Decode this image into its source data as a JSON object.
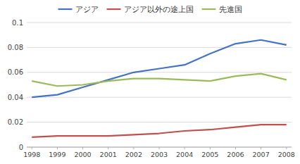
{
  "chart_data": {
    "type": "line",
    "x": [
      1998,
      1999,
      2000,
      2001,
      2002,
      2003,
      2004,
      2005,
      2006,
      2007,
      2008
    ],
    "series": [
      {
        "name": "アジア",
        "color": "#4472C4",
        "values": [
          0.04,
          0.042,
          0.048,
          0.054,
          0.06,
          0.063,
          0.066,
          0.075,
          0.083,
          0.086,
          0.082
        ]
      },
      {
        "name": "アジア以外の途上国",
        "color": "#C0504D",
        "values": [
          0.008,
          0.009,
          0.009,
          0.009,
          0.01,
          0.011,
          0.013,
          0.014,
          0.016,
          0.018,
          0.018
        ]
      },
      {
        "name": "先進国",
        "color": "#9BBB59",
        "values": [
          0.053,
          0.049,
          0.05,
          0.053,
          0.055,
          0.055,
          0.054,
          0.053,
          0.057,
          0.059,
          0.054
        ]
      }
    ],
    "xlim": [
      1997.8,
      2008.2
    ],
    "xticks": [
      1998,
      1999,
      2000,
      2001,
      2002,
      2003,
      2004,
      2005,
      2006,
      2007,
      2008
    ],
    "ylim": [
      0,
      0.1
    ],
    "yticks": [
      0,
      0.02,
      0.04,
      0.06,
      0.08,
      0.1
    ],
    "grid": true,
    "legend": "top"
  }
}
